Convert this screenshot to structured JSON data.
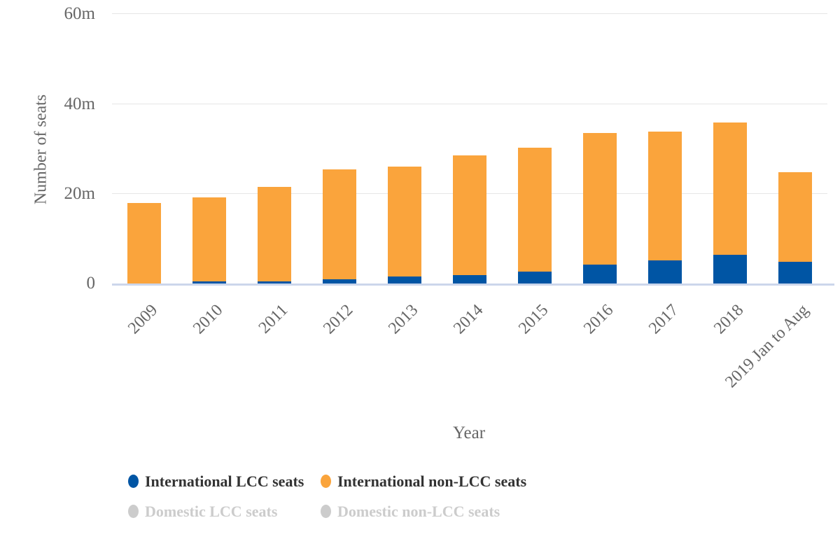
{
  "chart_data": {
    "type": "bar",
    "stacking": "stacked-column",
    "title": "",
    "xlabel": "Year",
    "ylabel": "Number of seats",
    "unit": "millions of seats",
    "ylim": [
      0,
      60
    ],
    "yticks": [
      {
        "value": 0,
        "label": "0"
      },
      {
        "value": 20,
        "label": "20m"
      },
      {
        "value": 40,
        "label": "40m"
      },
      {
        "value": 60,
        "label": "60m"
      }
    ],
    "grid": true,
    "legend_position": "bottom",
    "categories": [
      "2009",
      "2010",
      "2011",
      "2012",
      "2013",
      "2014",
      "2015",
      "2016",
      "2017",
      "2018",
      "2019 Jan to Aug"
    ],
    "series": [
      {
        "name": "International LCC seats",
        "color": "#0055a4",
        "visible": true,
        "values": [
          0,
          0.4,
          0.5,
          0.9,
          1.5,
          1.9,
          2.6,
          4.2,
          5.2,
          6.4,
          4.9
        ]
      },
      {
        "name": "International non-LCC seats",
        "color": "#faa43c",
        "visible": true,
        "values": [
          17.9,
          18.8,
          20.9,
          24.4,
          24.5,
          26.6,
          27.6,
          29.2,
          28.5,
          29.3,
          19.8
        ]
      },
      {
        "name": "Domestic LCC seats",
        "color": "#cccccc",
        "visible": false,
        "values": []
      },
      {
        "name": "Domestic non-LCC seats",
        "color": "#cccccc",
        "visible": false,
        "values": []
      }
    ]
  },
  "legend": {
    "items": [
      {
        "label": "International LCC seats",
        "color": "#0055a4",
        "enabled": true
      },
      {
        "label": "International non-LCC seats",
        "color": "#faa43c",
        "enabled": true
      },
      {
        "label": "Domestic LCC seats",
        "color": "#cccccc",
        "enabled": false
      },
      {
        "label": "Domestic non-LCC seats",
        "color": "#cccccc",
        "enabled": false
      }
    ]
  }
}
